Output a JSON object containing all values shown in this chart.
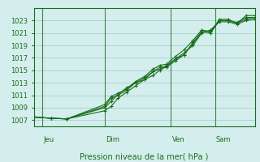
{
  "title": "Pression niveau de la mer( hPa )",
  "background_color": "#d4eeee",
  "grid_color": "#a0c8c8",
  "line_color": "#1a6e1a",
  "ylim": [
    1006,
    1025
  ],
  "yticks": [
    1007,
    1009,
    1011,
    1013,
    1015,
    1017,
    1019,
    1021,
    1023
  ],
  "day_labels": [
    "Jeu",
    "Dim",
    "Ven",
    "Sam"
  ],
  "day_positions": [
    0.04,
    0.32,
    0.62,
    0.82
  ],
  "lines": [
    {
      "x": [
        0.0,
        0.08,
        0.15,
        0.32,
        0.35,
        0.38,
        0.42,
        0.46,
        0.5,
        0.54,
        0.57,
        0.6,
        0.64,
        0.68,
        0.72,
        0.76,
        0.8,
        0.84,
        0.88,
        0.92,
        0.96,
        1.0
      ],
      "y": [
        1007.5,
        1007.3,
        1007.2,
        1009.0,
        1010.0,
        1011.1,
        1012.2,
        1013.0,
        1013.8,
        1014.8,
        1015.5,
        1015.5,
        1016.5,
        1017.5,
        1019.3,
        1021.2,
        1021.0,
        1023.0,
        1023.0,
        1022.7,
        1023.5,
        1023.5
      ]
    },
    {
      "x": [
        0.0,
        0.08,
        0.15,
        0.32,
        0.35,
        0.38,
        0.42,
        0.46,
        0.5,
        0.54,
        0.57,
        0.6,
        0.64,
        0.68,
        0.72,
        0.76,
        0.8,
        0.84,
        0.88,
        0.92,
        0.96,
        1.0
      ],
      "y": [
        1007.5,
        1007.3,
        1007.2,
        1008.5,
        1009.2,
        1010.5,
        1011.5,
        1012.5,
        1013.5,
        1014.2,
        1015.0,
        1015.6,
        1016.8,
        1017.8,
        1019.0,
        1021.0,
        1021.5,
        1022.8,
        1022.8,
        1022.4,
        1023.0,
        1023.2
      ]
    },
    {
      "x": [
        0.0,
        0.08,
        0.15,
        0.32,
        0.35,
        0.38,
        0.42,
        0.46,
        0.5,
        0.54,
        0.57,
        0.6,
        0.64,
        0.68,
        0.72,
        0.76,
        0.8,
        0.84,
        0.88,
        0.92,
        0.96,
        1.0
      ],
      "y": [
        1007.5,
        1007.3,
        1007.2,
        1009.5,
        1010.8,
        1011.3,
        1012.0,
        1013.2,
        1014.0,
        1015.2,
        1015.8,
        1016.0,
        1017.2,
        1018.3,
        1019.8,
        1021.5,
        1021.2,
        1023.2,
        1023.2,
        1022.5,
        1023.8,
        1023.8
      ]
    },
    {
      "x": [
        0.0,
        0.08,
        0.15,
        0.32,
        0.35,
        0.38,
        0.42,
        0.46,
        0.5,
        0.54,
        0.57,
        0.6,
        0.64,
        0.68,
        0.72,
        0.76,
        0.8,
        0.84,
        0.88,
        0.92,
        0.96,
        1.0
      ],
      "y": [
        1007.5,
        1007.3,
        1007.2,
        1009.2,
        1010.5,
        1011.0,
        1011.8,
        1013.0,
        1013.5,
        1014.8,
        1015.2,
        1015.8,
        1016.8,
        1017.5,
        1019.5,
        1021.2,
        1021.3,
        1023.0,
        1023.0,
        1022.6,
        1023.2,
        1023.5
      ]
    }
  ]
}
